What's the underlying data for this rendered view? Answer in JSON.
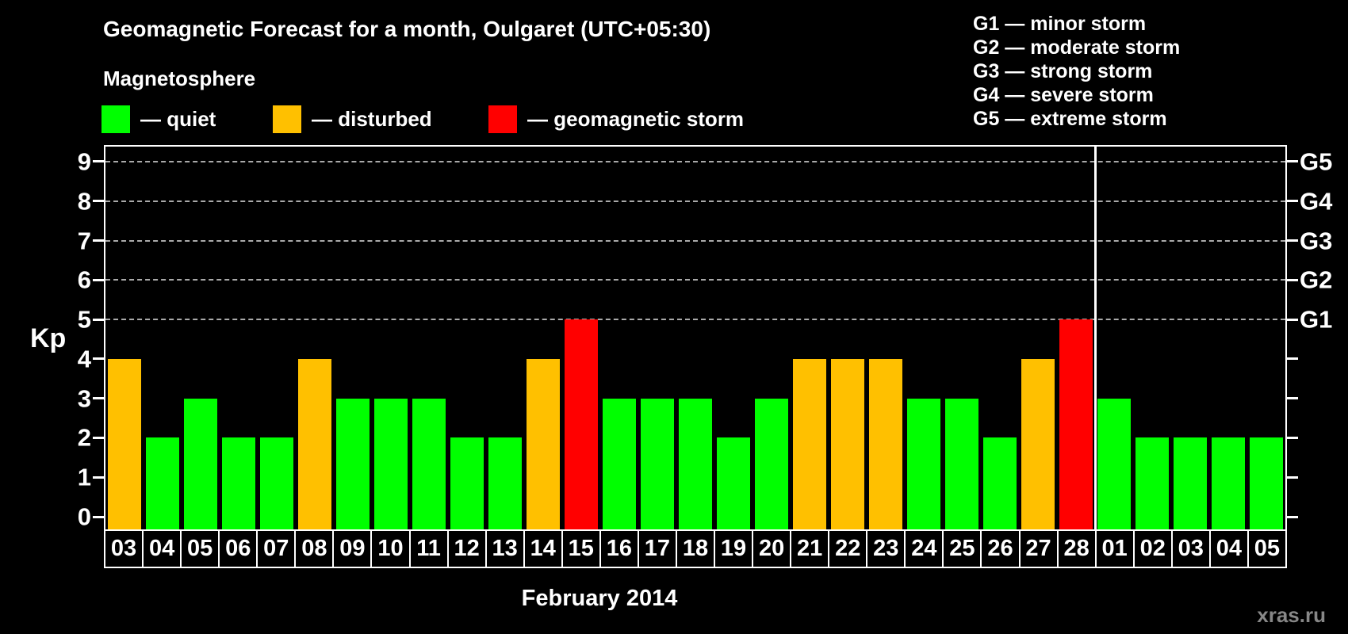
{
  "header": {
    "title": "Geomagnetic Forecast for a month, Oulgaret (UTC+05:30)",
    "subtitle": "Magnetosphere",
    "legend": [
      {
        "id": "quiet",
        "label": "— quiet",
        "color": "#00ff00"
      },
      {
        "id": "disturbed",
        "label": "— disturbed",
        "color": "#ffc000"
      },
      {
        "id": "storm",
        "label": "— geomagnetic storm",
        "color": "#ff0000"
      }
    ],
    "g_scale_legend": [
      "G1 — minor storm",
      "G2 — moderate storm",
      "G3 — strong storm",
      "G4 — severe storm",
      "G5 — extreme storm"
    ]
  },
  "chart_data": {
    "type": "bar",
    "title": "Geomagnetic Forecast for a month, Oulgaret (UTC+05:30)",
    "ylabel": "Kp",
    "xlabel": "February 2014",
    "ylim": [
      0,
      9
    ],
    "yticks": [
      0,
      1,
      2,
      3,
      4,
      5,
      6,
      7,
      8,
      9
    ],
    "gridlines_at": [
      5,
      6,
      7,
      8,
      9
    ],
    "grid": "dashed horizontal lines at storm levels only",
    "legend_position": "top-left",
    "right_axis_labels": [
      {
        "value": 5,
        "label": "G1"
      },
      {
        "value": 6,
        "label": "G2"
      },
      {
        "value": 7,
        "label": "G3"
      },
      {
        "value": 8,
        "label": "G4"
      },
      {
        "value": 9,
        "label": "G5"
      }
    ],
    "categories": [
      "03",
      "04",
      "05",
      "06",
      "07",
      "08",
      "09",
      "10",
      "11",
      "12",
      "13",
      "14",
      "15",
      "16",
      "17",
      "18",
      "19",
      "20",
      "21",
      "22",
      "23",
      "24",
      "25",
      "26",
      "27",
      "28",
      "01",
      "02",
      "03",
      "04",
      "05"
    ],
    "values": [
      4,
      2,
      3,
      2,
      2,
      4,
      3,
      3,
      3,
      2,
      2,
      4,
      5,
      3,
      3,
      3,
      2,
      3,
      4,
      4,
      4,
      3,
      3,
      2,
      4,
      5,
      3,
      2,
      2,
      2,
      2
    ],
    "statuses": [
      "disturbed",
      "quiet",
      "quiet",
      "quiet",
      "quiet",
      "disturbed",
      "quiet",
      "quiet",
      "quiet",
      "quiet",
      "quiet",
      "disturbed",
      "storm",
      "quiet",
      "quiet",
      "quiet",
      "quiet",
      "quiet",
      "disturbed",
      "disturbed",
      "disturbed",
      "quiet",
      "quiet",
      "quiet",
      "disturbed",
      "storm",
      "quiet",
      "quiet",
      "quiet",
      "quiet",
      "quiet"
    ],
    "colors": {
      "quiet": "#00ff00",
      "disturbed": "#ffc000",
      "storm": "#ff0000"
    },
    "month_divider_after_index": 25
  },
  "footer": {
    "watermark": "xras.ru"
  }
}
